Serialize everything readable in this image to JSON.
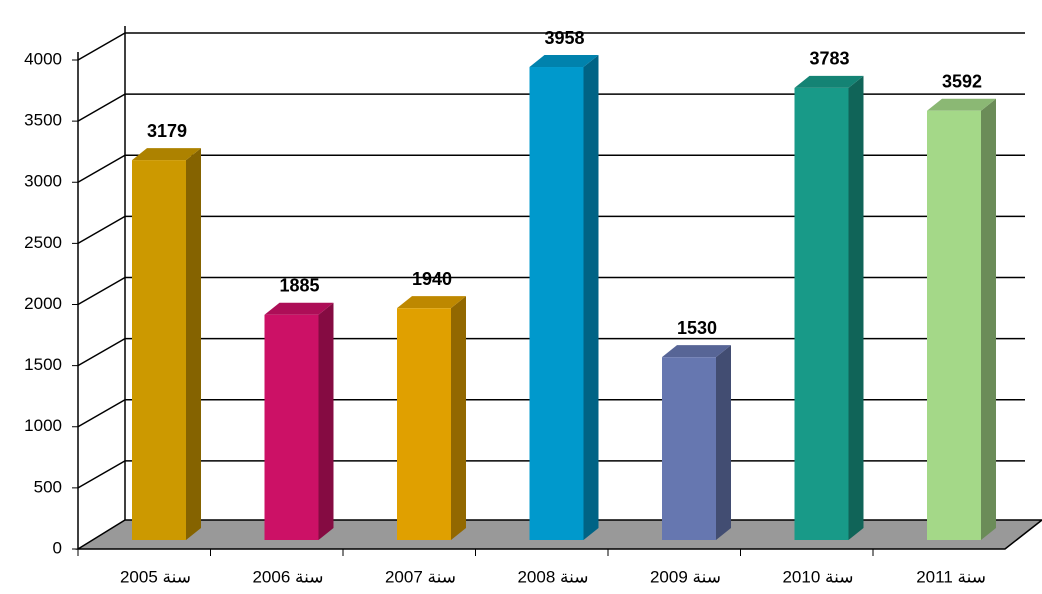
{
  "chart_data": {
    "type": "bar3d",
    "categories": [
      "سنة 2005",
      "سنة 2006",
      "سنة 2007",
      "سنة 2008",
      "سنة 2009",
      "سنة 2010",
      "سنة 2011"
    ],
    "series": [
      {
        "values": [
          3179,
          1885,
          1940,
          3958,
          1530,
          3783,
          3592
        ],
        "colors": [
          "#cc9900",
          "#cc1166",
          "#e0a000",
          "#0099cc",
          "#6677b0",
          "#189a88",
          "#a4d888"
        ]
      }
    ],
    "ylim": [
      0,
      4000
    ],
    "yticks": [
      0,
      500,
      1000,
      1500,
      2000,
      2500,
      3000,
      3500,
      4000
    ],
    "grid": true
  }
}
